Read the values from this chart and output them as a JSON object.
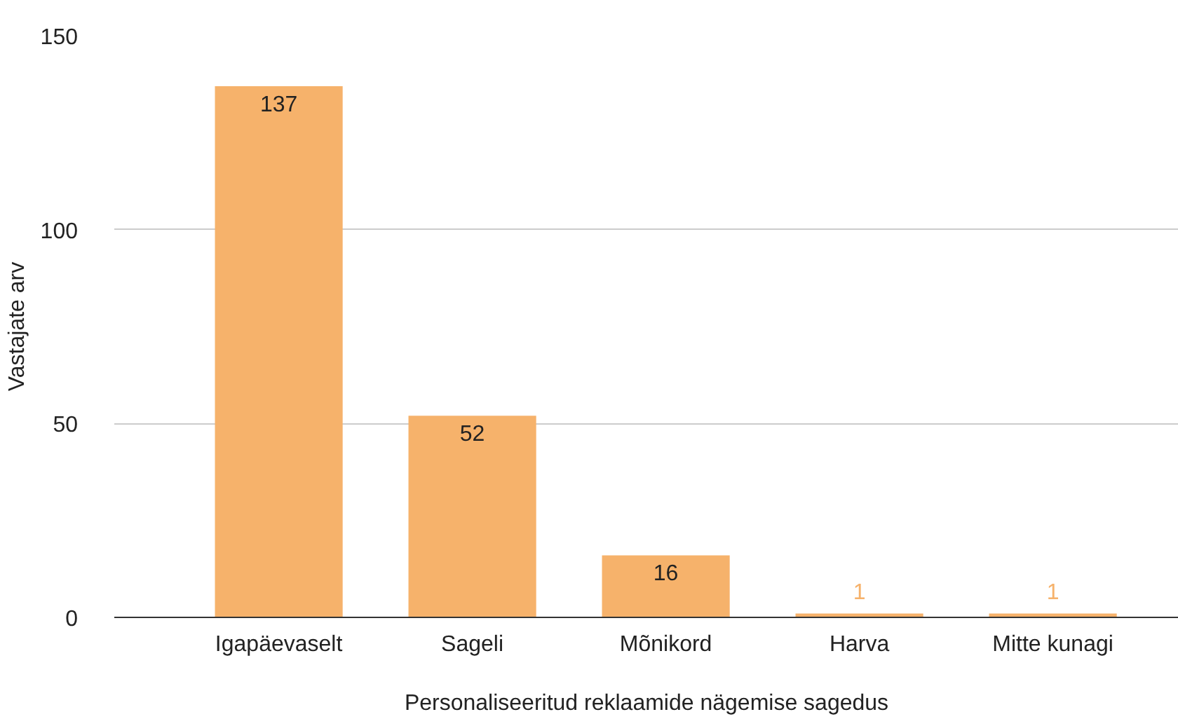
{
  "chart_data": {
    "type": "bar",
    "xlabel": "Personaliseeritud reklaamide nägemise sagedus",
    "ylabel": "Vastajate arv",
    "categories": [
      "Igapäevaselt",
      "Sageli",
      "Mõnikord",
      "Harva",
      "Mitte kunagi"
    ],
    "values": [
      137,
      52,
      16,
      1,
      1
    ],
    "color": "#f6b26b",
    "ylim": [
      0,
      150
    ],
    "yticks": [
      0,
      50,
      100,
      150
    ],
    "grid": "y",
    "data_labels": true
  }
}
